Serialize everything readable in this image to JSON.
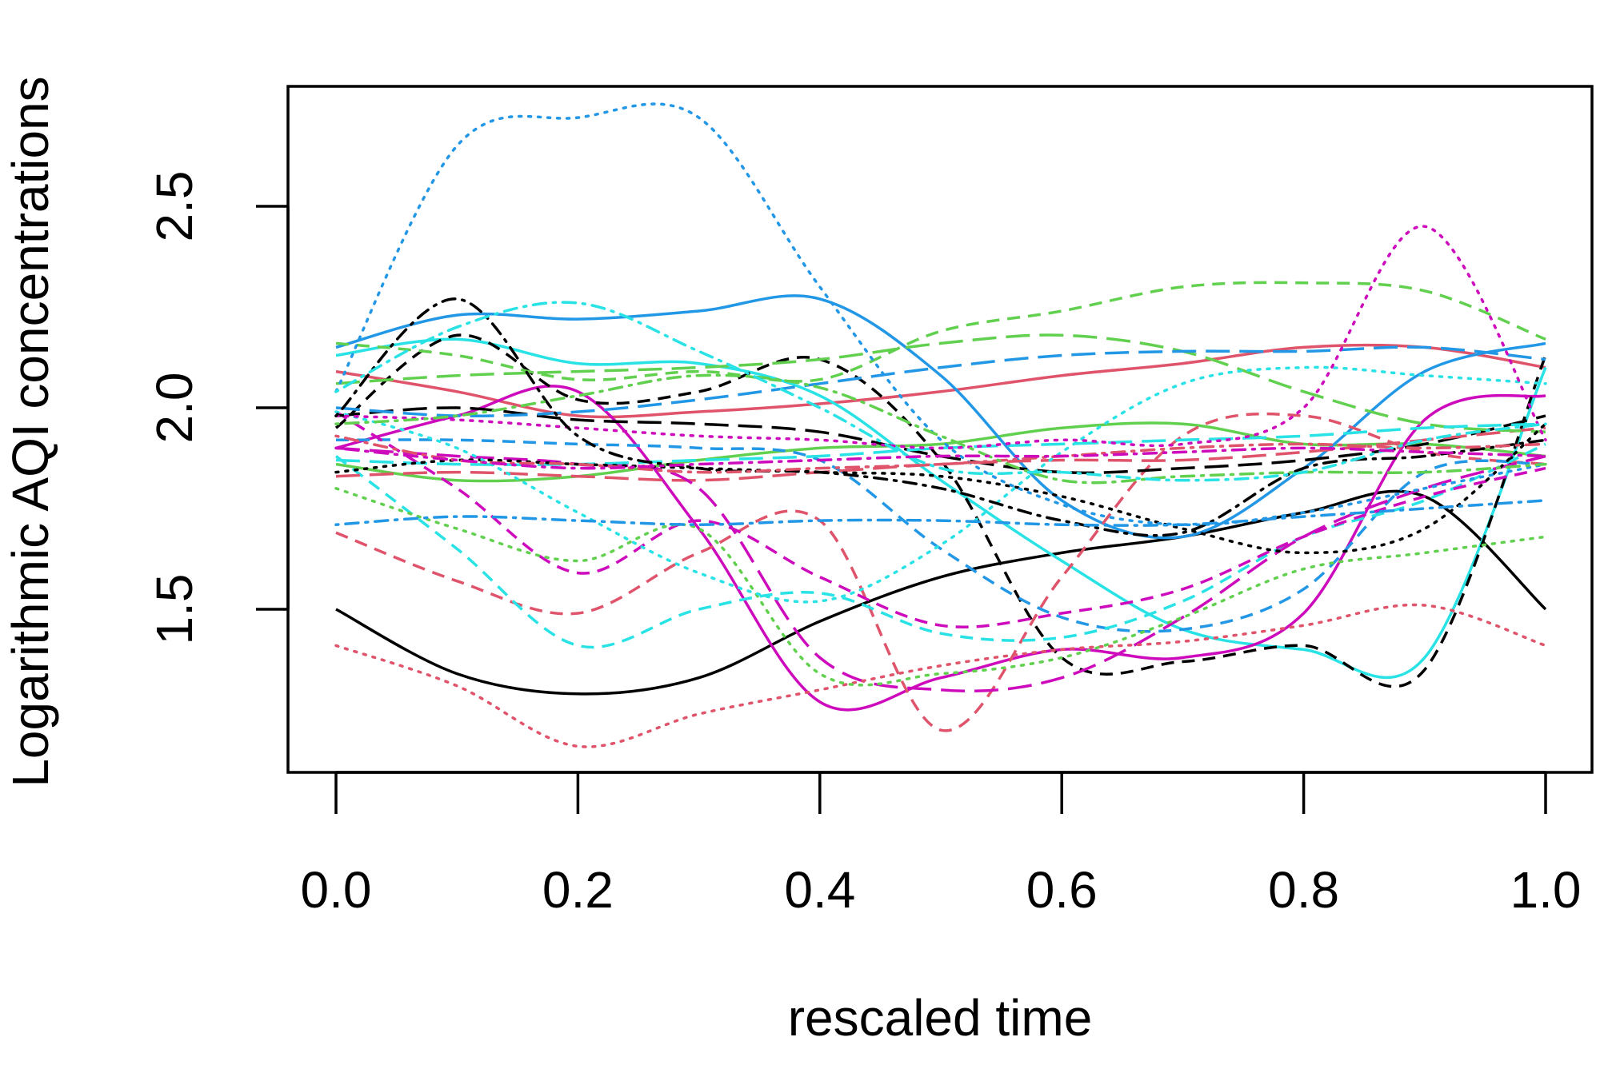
{
  "chart_data": {
    "type": "line",
    "title": "",
    "xlabel": "rescaled time",
    "ylabel": "Logarithmic AQI concentrations",
    "xlim": [
      0.0,
      1.0
    ],
    "ylim": [
      1.1,
      2.8
    ],
    "grid": false,
    "legend": "none",
    "x_ticks": [
      {
        "value": 0.0,
        "label": "0.0"
      },
      {
        "value": 0.2,
        "label": "0.2"
      },
      {
        "value": 0.4,
        "label": "0.4"
      },
      {
        "value": 0.6,
        "label": "0.6"
      },
      {
        "value": 0.8,
        "label": "0.8"
      },
      {
        "value": 1.0,
        "label": "1.0"
      }
    ],
    "y_ticks": [
      {
        "value": 1.5,
        "label": "1.5"
      },
      {
        "value": 2.0,
        "label": "2.0"
      },
      {
        "value": 2.5,
        "label": "2.5"
      }
    ],
    "x": [
      0.0,
      0.1,
      0.2,
      0.3,
      0.4,
      0.5,
      0.6,
      0.7,
      0.8,
      0.9,
      1.0
    ],
    "series": [
      {
        "name": "s01",
        "color": "#000000",
        "dash": "solid",
        "values": [
          1.5,
          1.34,
          1.29,
          1.33,
          1.47,
          1.58,
          1.64,
          1.68,
          1.74,
          1.78,
          1.5
        ]
      },
      {
        "name": "s02",
        "color": "#DF536B",
        "dash": "solid",
        "values": [
          2.09,
          2.04,
          1.98,
          1.99,
          2.01,
          2.04,
          2.08,
          2.11,
          2.15,
          2.15,
          2.1
        ]
      },
      {
        "name": "s03",
        "color": "#61D04F",
        "dash": "solid",
        "values": [
          1.86,
          1.82,
          1.83,
          1.87,
          1.9,
          1.91,
          1.95,
          1.96,
          1.91,
          1.91,
          1.88
        ]
      },
      {
        "name": "s04",
        "color": "#2297E6",
        "dash": "solid",
        "values": [
          2.15,
          2.23,
          2.22,
          2.24,
          2.27,
          2.08,
          1.77,
          1.68,
          1.85,
          2.09,
          2.16
        ]
      },
      {
        "name": "s05",
        "color": "#28E2E5",
        "dash": "solid",
        "values": [
          2.13,
          2.17,
          2.11,
          2.11,
          2.03,
          1.82,
          1.62,
          1.45,
          1.4,
          1.38,
          2.1
        ]
      },
      {
        "name": "s06",
        "color": "#CD0BBC",
        "dash": "solid",
        "values": [
          1.9,
          1.98,
          2.04,
          1.7,
          1.27,
          1.33,
          1.4,
          1.38,
          1.49,
          1.97,
          2.03
        ]
      },
      {
        "name": "s07",
        "color": "#000000",
        "dash": "dashed",
        "values": [
          1.95,
          2.18,
          2.02,
          2.04,
          2.12,
          1.87,
          1.38,
          1.37,
          1.41,
          1.35,
          2.13
        ]
      },
      {
        "name": "s08",
        "color": "#DF536B",
        "dash": "dashed",
        "values": [
          1.69,
          1.57,
          1.49,
          1.64,
          1.72,
          1.2,
          1.58,
          1.93,
          1.98,
          1.89,
          1.86
        ]
      },
      {
        "name": "s09",
        "color": "#61D04F",
        "dash": "dashed",
        "values": [
          2.16,
          2.13,
          2.07,
          2.09,
          2.07,
          2.19,
          2.24,
          2.3,
          2.31,
          2.29,
          2.17
        ]
      },
      {
        "name": "s10",
        "color": "#2297E6",
        "dash": "dashed",
        "values": [
          1.92,
          1.92,
          1.91,
          1.9,
          1.87,
          1.65,
          1.48,
          1.45,
          1.55,
          1.84,
          1.86
        ]
      },
      {
        "name": "s11",
        "color": "#28E2E5",
        "dash": "dashed",
        "values": [
          1.88,
          1.65,
          1.41,
          1.5,
          1.54,
          1.44,
          1.43,
          1.52,
          1.68,
          1.77,
          1.91
        ]
      },
      {
        "name": "s12",
        "color": "#CD0BBC",
        "dash": "dashed",
        "values": [
          1.99,
          1.8,
          1.59,
          1.72,
          1.58,
          1.46,
          1.49,
          1.55,
          1.68,
          1.78,
          1.85
        ]
      },
      {
        "name": "s13",
        "color": "#000000",
        "dash": "longdash",
        "values": [
          1.98,
          2.0,
          1.97,
          1.96,
          1.94,
          1.88,
          1.84,
          1.85,
          1.87,
          1.91,
          1.98
        ]
      },
      {
        "name": "s14",
        "color": "#DF536B",
        "dash": "longdash",
        "values": [
          1.83,
          1.84,
          1.83,
          1.82,
          1.84,
          1.86,
          1.87,
          1.87,
          1.89,
          1.92,
          1.95
        ]
      },
      {
        "name": "s15",
        "color": "#61D04F",
        "dash": "longdash",
        "values": [
          2.06,
          2.08,
          2.09,
          2.1,
          2.12,
          2.16,
          2.18,
          2.14,
          2.04,
          1.96,
          1.94
        ]
      },
      {
        "name": "s16",
        "color": "#2297E6",
        "dash": "longdash",
        "values": [
          2.0,
          1.98,
          1.99,
          2.02,
          2.06,
          2.1,
          2.13,
          2.14,
          2.14,
          2.15,
          2.12
        ]
      },
      {
        "name": "s17",
        "color": "#28E2E5",
        "dash": "longdash",
        "values": [
          1.87,
          1.86,
          1.86,
          1.87,
          1.88,
          1.9,
          1.91,
          1.92,
          1.93,
          1.95,
          1.96
        ]
      },
      {
        "name": "s18",
        "color": "#CD0BBC",
        "dash": "longdash",
        "values": [
          1.9,
          1.88,
          1.86,
          1.8,
          1.38,
          1.3,
          1.33,
          1.48,
          1.68,
          1.8,
          1.88
        ]
      },
      {
        "name": "s19",
        "color": "#000000",
        "dash": "dotted",
        "values": [
          1.84,
          1.87,
          1.86,
          1.85,
          1.84,
          1.83,
          1.78,
          1.7,
          1.64,
          1.7,
          1.96
        ]
      },
      {
        "name": "s20",
        "color": "#DF536B",
        "dash": "dotted",
        "values": [
          1.41,
          1.31,
          1.16,
          1.24,
          1.3,
          1.36,
          1.4,
          1.42,
          1.46,
          1.51,
          1.41
        ]
      },
      {
        "name": "s21",
        "color": "#61D04F",
        "dash": "dotted",
        "values": [
          1.8,
          1.7,
          1.62,
          1.7,
          1.34,
          1.34,
          1.38,
          1.48,
          1.6,
          1.64,
          1.68
        ]
      },
      {
        "name": "s22",
        "color": "#2297E6",
        "dash": "dotted",
        "values": [
          2.04,
          2.65,
          2.72,
          2.72,
          2.3,
          1.92,
          1.76,
          1.71,
          1.74,
          1.8,
          1.86
        ]
      },
      {
        "name": "s23",
        "color": "#28E2E5",
        "dash": "dotted",
        "values": [
          1.99,
          1.9,
          1.74,
          1.59,
          1.52,
          1.66,
          1.89,
          2.06,
          2.1,
          2.08,
          2.06
        ]
      },
      {
        "name": "s24",
        "color": "#CD0BBC",
        "dash": "dotted",
        "values": [
          1.98,
          1.97,
          1.95,
          1.93,
          1.92,
          1.9,
          1.92,
          1.91,
          2.0,
          2.45,
          1.92
        ]
      },
      {
        "name": "s25",
        "color": "#000000",
        "dash": "dotdash",
        "values": [
          1.98,
          2.27,
          1.93,
          1.85,
          1.84,
          1.8,
          1.72,
          1.69,
          1.85,
          1.88,
          1.92
        ]
      },
      {
        "name": "s26",
        "color": "#DF536B",
        "dash": "dotdash",
        "values": [
          1.93,
          1.87,
          1.86,
          1.84,
          1.85,
          1.86,
          1.88,
          1.9,
          1.91,
          1.9,
          1.91
        ]
      },
      {
        "name": "s27",
        "color": "#61D04F",
        "dash": "dotdash",
        "values": [
          1.96,
          1.98,
          2.03,
          2.08,
          2.05,
          1.93,
          1.82,
          1.83,
          1.84,
          1.84,
          1.86
        ]
      },
      {
        "name": "s28",
        "color": "#2297E6",
        "dash": "dotdash",
        "values": [
          1.71,
          1.73,
          1.72,
          1.71,
          1.72,
          1.72,
          1.71,
          1.71,
          1.73,
          1.75,
          1.77
        ]
      },
      {
        "name": "s29",
        "color": "#28E2E5",
        "dash": "dotdash",
        "values": [
          2.04,
          2.2,
          2.26,
          2.14,
          2.0,
          1.85,
          1.84,
          1.82,
          1.84,
          1.92,
          1.96
        ]
      },
      {
        "name": "s30",
        "color": "#CD0BBC",
        "dash": "dotdash",
        "values": [
          1.9,
          1.87,
          1.85,
          1.86,
          1.87,
          1.88,
          1.88,
          1.89,
          1.9,
          1.89,
          1.88
        ]
      }
    ]
  }
}
